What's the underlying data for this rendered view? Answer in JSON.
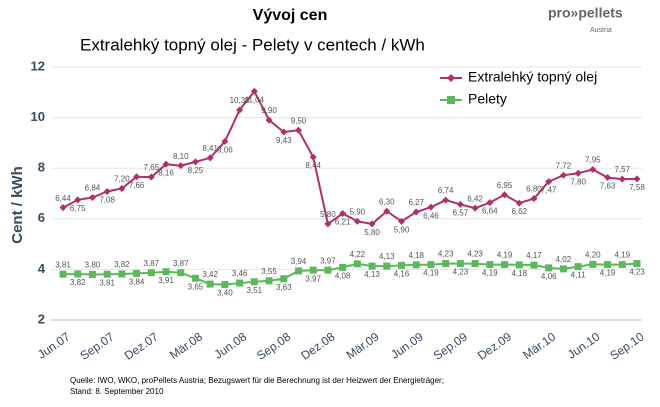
{
  "chart_data": {
    "type": "line",
    "title": "Vývoj cen",
    "subtitle": "Extralehký topný olej - Pelety  v centech / kWh",
    "logo": "pro»pellets",
    "logo_sub": "Austria",
    "y_label": "Cent / kWh",
    "source": [
      "Quelle: IWO, WKO, proPellets Austria; Bezugswert für die Berechnung ist der Heizwert der Energieträger;",
      "Stand: 8. September 2010"
    ],
    "categories": [
      "Jun.07",
      null,
      null,
      "Sep.07",
      null,
      null,
      "Dez.07",
      null,
      null,
      "Mär.08",
      null,
      null,
      "Jun.08",
      null,
      null,
      "Sep.08",
      null,
      null,
      "Dez.08",
      null,
      null,
      "Mär.09",
      null,
      null,
      "Jun.09",
      null,
      null,
      "Sep.09",
      null,
      null,
      "Dez.09",
      null,
      null,
      "Mär.10",
      null,
      null,
      "Jun.10",
      null,
      null,
      "Sep.10"
    ],
    "ylim": [
      2,
      12
    ],
    "yticks": [
      2,
      4,
      6,
      8,
      10,
      12
    ],
    "grid": true,
    "legend": "upper right",
    "series": [
      {
        "name": "Extralehký topný olej",
        "color": "#b0306a",
        "values": [
          6.44,
          6.75,
          6.84,
          7.08,
          7.2,
          7.66,
          7.65,
          8.16,
          8.1,
          8.25,
          8.41,
          9.06,
          10.3,
          11.04,
          9.9,
          9.43,
          9.5,
          8.44,
          5.8,
          6.21,
          5.9,
          5.8,
          6.3,
          5.9,
          6.27,
          6.46,
          6.74,
          6.57,
          6.42,
          6.64,
          6.95,
          6.62,
          6.8,
          7.47,
          7.72,
          7.8,
          7.95,
          7.63,
          7.57,
          7.58
        ],
        "value_labels": [
          "6,44",
          "6,75",
          "6,84",
          "7,08",
          "7,20",
          "7,66",
          "7,65",
          "8,16",
          "8,10",
          "8,25",
          "8,41",
          "9,06",
          "10,30",
          "11,04",
          "9,90",
          "9,43",
          "9,50",
          "8,44",
          "5,80",
          "6,21",
          "5,90",
          "5,80",
          "6,30",
          "5,90",
          "6,27",
          "6,46",
          "6,74",
          "6,57",
          "6,42",
          "6,64",
          "6,95",
          "6,62",
          "6,80",
          "7,47",
          "7,72",
          "7,80",
          "7,95",
          "7,63",
          "7,57",
          "7,58"
        ]
      },
      {
        "name": "Pelety",
        "color": "#5cb85c",
        "values": [
          3.81,
          3.82,
          3.8,
          3.81,
          3.82,
          3.84,
          3.87,
          3.91,
          3.87,
          3.65,
          3.42,
          3.4,
          3.46,
          3.51,
          3.55,
          3.63,
          3.94,
          3.97,
          3.97,
          4.08,
          4.22,
          4.13,
          4.13,
          4.16,
          4.18,
          4.19,
          4.23,
          4.23,
          4.23,
          4.19,
          4.19,
          4.18,
          4.17,
          4.06,
          4.02,
          4.11,
          4.2,
          4.19,
          4.19,
          4.23
        ],
        "value_labels": [
          "3,81",
          "3,82",
          "3,80",
          "3,81",
          "3,82",
          "3,84",
          "3,87",
          "3,91",
          "3,87",
          "3,65",
          "3,42",
          "3,40",
          "3,46",
          "3,51",
          "3,55",
          "3,63",
          "3,94",
          "3,97",
          "3,97",
          "4,08",
          "4,22",
          "4,13",
          "4,13",
          "4,16",
          "4,18",
          "4,19",
          "4,23",
          "4,23",
          "4,23",
          "4,19",
          "4,19",
          "4,18",
          "4,17",
          "4,06",
          "4,02",
          "4,11",
          "4,20",
          "4,19",
          "4,19",
          "4,23"
        ]
      }
    ]
  }
}
